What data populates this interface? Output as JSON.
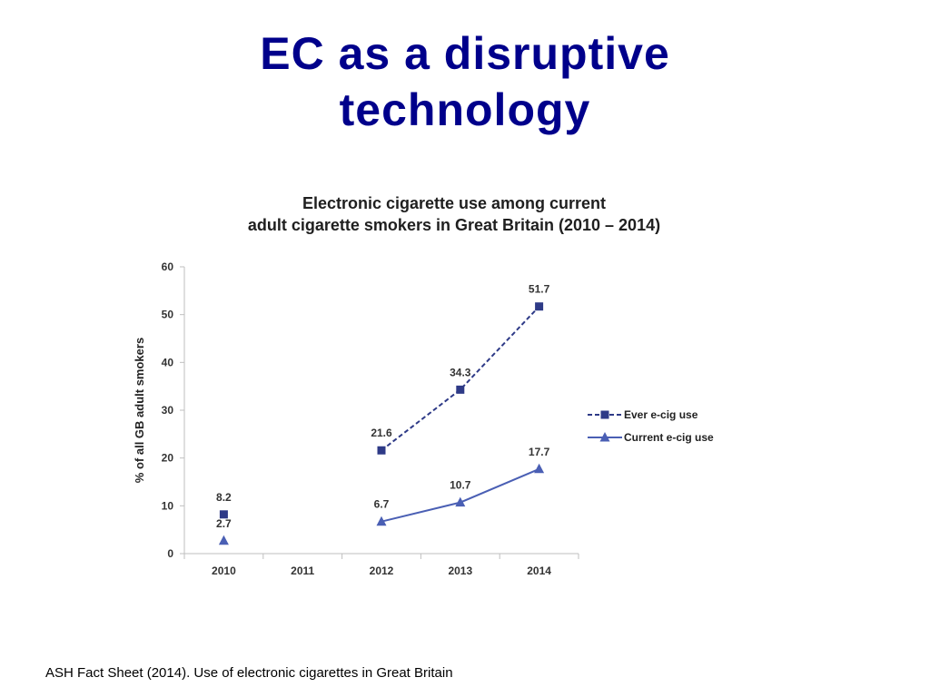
{
  "slide": {
    "title_line1": "EC as a disruptive",
    "title_line2": "technology",
    "footer": "ASH Fact Sheet (2014). Use of electronic cigarettes in Great Britain"
  },
  "chart_data": {
    "type": "line",
    "title_line1": "Electronic cigarette use among current",
    "title_line2": "adult cigarette smokers in Great Britain (2010 – 2014)",
    "xlabel": "",
    "ylabel": "% of all GB adult smokers",
    "ylim": [
      0,
      60
    ],
    "yticks": [
      "0",
      "10",
      "20",
      "30",
      "40",
      "50",
      "60"
    ],
    "categories": [
      "2010",
      "2011",
      "2012",
      "2013",
      "2014"
    ],
    "grid": false,
    "legend_position": "right",
    "series": [
      {
        "name": "Ever e-cig use",
        "color": "#2e3a87",
        "marker": "square",
        "line_style": "dashed",
        "values": [
          8.2,
          null,
          21.6,
          34.3,
          51.7
        ],
        "labels": [
          "8.2",
          null,
          "21.6",
          "34.3",
          "51.7"
        ]
      },
      {
        "name": "Current e-cig use",
        "color": "#4a5fb4",
        "marker": "triangle",
        "line_style": "solid",
        "values": [
          2.7,
          null,
          6.7,
          10.7,
          17.7
        ],
        "labels": [
          "2.7",
          null,
          "6.7",
          "10.7",
          "17.7"
        ]
      }
    ]
  }
}
